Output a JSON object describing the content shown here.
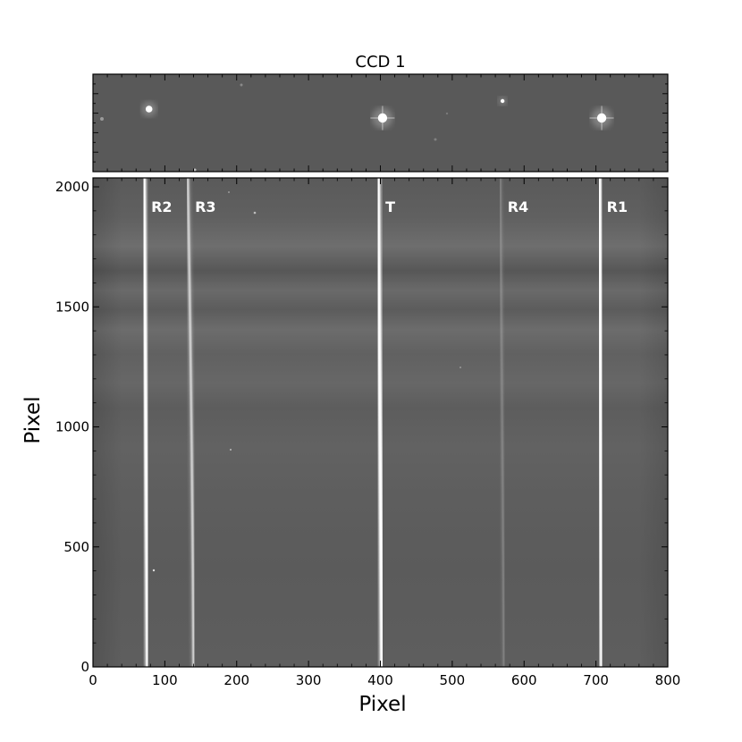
{
  "chart_data": {
    "type": "image",
    "title": "CCD 1",
    "xlabel": "Pixel",
    "ylabel": "Pixel",
    "xlim": [
      0,
      800
    ],
    "ylim": [
      0,
      2000
    ],
    "xticks": [
      0,
      100,
      200,
      300,
      400,
      500,
      600,
      700,
      800
    ],
    "yticks": [
      0,
      500,
      1000,
      1500,
      2000
    ],
    "colormap": "gray",
    "background_color": "#5e5e5e",
    "stars": [
      {
        "x": 78,
        "size": "medium"
      },
      {
        "x": 403,
        "size": "large"
      },
      {
        "x": 570,
        "size": "small"
      },
      {
        "x": 708,
        "size": "large"
      }
    ],
    "spectra": [
      {
        "label": "R2",
        "x_top": 71,
        "x_bottom": 76,
        "strength": "strong"
      },
      {
        "label": "R3",
        "x_top": 132,
        "x_bottom": 140,
        "strength": "medium"
      },
      {
        "label": "T",
        "x_top": 397,
        "x_bottom": 402,
        "strength": "strong"
      },
      {
        "label": "R4",
        "x_top": 567,
        "x_bottom": 572,
        "strength": "faint"
      },
      {
        "label": "R1",
        "x_top": 705,
        "x_bottom": 708,
        "strength": "strong"
      }
    ]
  }
}
